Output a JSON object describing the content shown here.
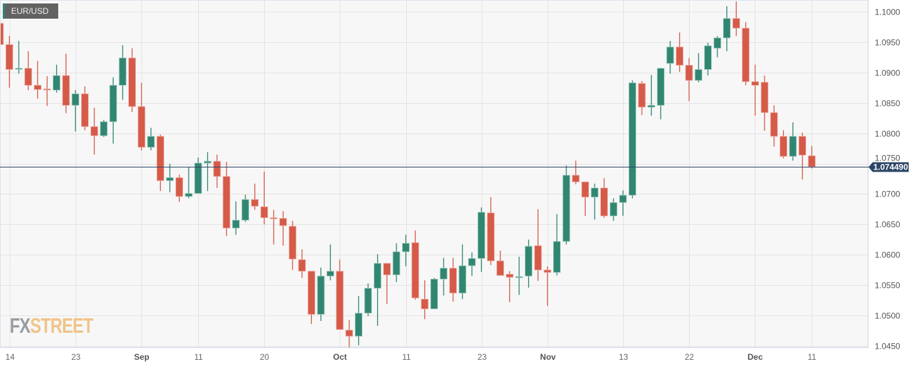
{
  "symbol": "EUR/USD",
  "logo": {
    "part1": "FX",
    "part2": "STREET"
  },
  "colors": {
    "up": "#318672",
    "down": "#d55a48",
    "background": "#f7f7f7",
    "grid": "#e4e4e4",
    "price_line": "#2c4566"
  },
  "chart_data": {
    "type": "candlestick",
    "title": "EUR/USD",
    "ylim": [
      1.045,
      1.1
    ],
    "y_ticks": [
      "1.1000",
      "1.0950",
      "1.0900",
      "1.0850",
      "1.0800",
      "1.0750",
      "1.0700",
      "1.0650",
      "1.0600",
      "1.0550",
      "1.0500",
      "1.0450"
    ],
    "x_ticks": [
      {
        "label": "14",
        "date": "Aug 14",
        "month": false
      },
      {
        "label": "23",
        "date": "Aug 23",
        "month": false
      },
      {
        "label": "Sep",
        "date": "Sep 1",
        "month": true
      },
      {
        "label": "11",
        "date": "Sep 11",
        "month": false
      },
      {
        "label": "20",
        "date": "Sep 20",
        "month": false
      },
      {
        "label": "Oct",
        "date": "Oct 2",
        "month": true
      },
      {
        "label": "11",
        "date": "Oct 11",
        "month": false
      },
      {
        "label": "23",
        "date": "Oct 23",
        "month": false
      },
      {
        "label": "Nov",
        "date": "Nov 1",
        "month": true
      },
      {
        "label": "13",
        "date": "Nov 13",
        "month": false
      },
      {
        "label": "22",
        "date": "Nov 22",
        "month": false
      },
      {
        "label": "Dec",
        "date": "Dec 1",
        "month": true
      },
      {
        "label": "11",
        "date": "Dec 11",
        "month": false
      }
    ],
    "grid": true,
    "last_price": "1.074490",
    "columns": [
      "date",
      "open",
      "high",
      "low",
      "close"
    ],
    "candles": [
      [
        "Aug 11",
        1.0981,
        1.1,
        1.094,
        1.0946
      ],
      [
        "Aug 14",
        1.0946,
        1.096,
        1.0875,
        1.0905
      ],
      [
        "Aug 15",
        1.0906,
        1.0952,
        1.0898,
        1.0907
      ],
      [
        "Aug 16",
        1.0907,
        1.0935,
        1.0871,
        1.0879
      ],
      [
        "Aug 17",
        1.0879,
        1.0919,
        1.0857,
        1.0872
      ],
      [
        "Aug 18",
        1.0873,
        1.0894,
        1.0845,
        1.0872
      ],
      [
        "Aug 21",
        1.0871,
        1.0913,
        1.0867,
        1.0895
      ],
      [
        "Aug 22",
        1.0895,
        1.0931,
        1.0833,
        1.0846
      ],
      [
        "Aug 23",
        1.0846,
        1.0871,
        1.0803,
        1.0865
      ],
      [
        "Aug 24",
        1.0865,
        1.0877,
        1.0805,
        1.0811
      ],
      [
        "Aug 25",
        1.0811,
        1.0842,
        1.0765,
        1.0796
      ],
      [
        "Aug 28",
        1.0796,
        1.0822,
        1.0794,
        1.0819
      ],
      [
        "Aug 29",
        1.0819,
        1.0892,
        1.0783,
        1.0879
      ],
      [
        "Aug 30",
        1.0879,
        1.0945,
        1.0855,
        1.0924
      ],
      [
        "Aug 31",
        1.0924,
        1.094,
        1.0835,
        1.0844
      ],
      [
        "Sep 1",
        1.0844,
        1.0883,
        1.0772,
        1.0777
      ],
      [
        "Sep 4",
        1.0777,
        1.0809,
        1.0772,
        1.0795
      ],
      [
        "Sep 5",
        1.0795,
        1.0798,
        1.0705,
        1.0722
      ],
      [
        "Sep 6",
        1.0722,
        1.075,
        1.0703,
        1.0727
      ],
      [
        "Sep 7",
        1.0727,
        1.0732,
        1.0687,
        1.0696
      ],
      [
        "Sep 8",
        1.0696,
        1.0744,
        1.0693,
        1.0701
      ],
      [
        "Sep 11",
        1.0701,
        1.076,
        1.0701,
        1.0751
      ],
      [
        "Sep 12",
        1.0751,
        1.0769,
        1.0705,
        1.0754
      ],
      [
        "Sep 13",
        1.0754,
        1.0765,
        1.071,
        1.0729
      ],
      [
        "Sep 14",
        1.0729,
        1.0753,
        1.0631,
        1.0644
      ],
      [
        "Sep 15",
        1.0644,
        1.0688,
        1.0633,
        1.0657
      ],
      [
        "Sep 18",
        1.0657,
        1.0699,
        1.0654,
        1.0691
      ],
      [
        "Sep 19",
        1.0691,
        1.0717,
        1.0674,
        1.068
      ],
      [
        "Sep 20",
        1.0679,
        1.0737,
        1.065,
        1.0661
      ],
      [
        "Sep 21",
        1.0661,
        1.0674,
        1.0617,
        1.066
      ],
      [
        "Sep 22",
        1.066,
        1.0672,
        1.0615,
        1.0648
      ],
      [
        "Sep 25",
        1.0647,
        1.0656,
        1.0575,
        1.0593
      ],
      [
        "Sep 26",
        1.0592,
        1.0609,
        1.0562,
        1.0573
      ],
      [
        "Sep 27",
        1.0573,
        1.0573,
        1.0486,
        1.0502
      ],
      [
        "Sep 28",
        1.0502,
        1.0579,
        1.0491,
        1.0565
      ],
      [
        "Sep 29",
        1.0565,
        1.0617,
        1.0558,
        1.0573
      ],
      [
        "Oct 2",
        1.0573,
        1.0592,
        1.0477,
        1.0477
      ],
      [
        "Oct 3",
        1.0476,
        1.0493,
        1.0448,
        1.0466
      ],
      [
        "Oct 4",
        1.0466,
        1.0532,
        1.0451,
        1.0504
      ],
      [
        "Oct 5",
        1.0504,
        1.0553,
        1.0499,
        1.0545
      ],
      [
        "Oct 6",
        1.0545,
        1.0601,
        1.0483,
        1.0586
      ],
      [
        "Oct 9",
        1.0586,
        1.0586,
        1.0519,
        1.0567
      ],
      [
        "Oct 10",
        1.0567,
        1.0619,
        1.0555,
        1.0605
      ],
      [
        "Oct 11",
        1.0605,
        1.0633,
        1.0581,
        1.0619
      ],
      [
        "Oct 12",
        1.062,
        1.064,
        1.0526,
        1.0529
      ],
      [
        "Oct 13",
        1.0527,
        1.0558,
        1.0494,
        1.0511
      ],
      [
        "Oct 16",
        1.0511,
        1.0562,
        1.0511,
        1.056
      ],
      [
        "Oct 17",
        1.056,
        1.0595,
        1.0533,
        1.0578
      ],
      [
        "Oct 18",
        1.0578,
        1.0595,
        1.0523,
        1.0537
      ],
      [
        "Oct 19",
        1.0537,
        1.0617,
        1.0527,
        1.0582
      ],
      [
        "Oct 20",
        1.0582,
        1.0604,
        1.0565,
        1.0594
      ],
      [
        "Oct 23",
        1.0594,
        1.0678,
        1.0572,
        1.067
      ],
      [
        "Oct 24",
        1.0669,
        1.0695,
        1.0583,
        1.059
      ],
      [
        "Oct 25",
        1.059,
        1.0607,
        1.0566,
        1.0566
      ],
      [
        "Oct 26",
        1.0568,
        1.0573,
        1.0522,
        1.0563
      ],
      [
        "Oct 27",
        1.0563,
        1.0597,
        1.0534,
        1.0564
      ],
      [
        "Oct 30",
        1.0565,
        1.0625,
        1.0546,
        1.0614
      ],
      [
        "Oct 31",
        1.0615,
        1.0675,
        1.0557,
        1.0575
      ],
      [
        "Nov 1",
        1.0575,
        1.0581,
        1.0516,
        1.0571
      ],
      [
        "Nov 2",
        1.0571,
        1.0667,
        1.0566,
        1.0622
      ],
      [
        "Nov 3",
        1.0622,
        1.0747,
        1.0617,
        1.0731
      ],
      [
        "Nov 6",
        1.0731,
        1.0755,
        1.0716,
        1.072
      ],
      [
        "Nov 7",
        1.072,
        1.072,
        1.0664,
        1.0695
      ],
      [
        "Nov 8",
        1.0695,
        1.0717,
        1.0658,
        1.071
      ],
      [
        "Nov 9",
        1.071,
        1.0726,
        1.0661,
        1.0664
      ],
      [
        "Nov 10",
        1.0664,
        1.0693,
        1.0656,
        1.0686
      ],
      [
        "Nov 13",
        1.0686,
        1.0706,
        1.0664,
        1.0698
      ],
      [
        "Nov 14",
        1.0698,
        1.0887,
        1.0693,
        1.0883
      ],
      [
        "Nov 15",
        1.0882,
        1.0886,
        1.083,
        1.0843
      ],
      [
        "Nov 16",
        1.0843,
        1.0896,
        1.0829,
        1.0846
      ],
      [
        "Nov 17",
        1.0846,
        1.0907,
        1.0823,
        1.0907
      ],
      [
        "Nov 20",
        1.0915,
        1.0952,
        1.0898,
        1.0942
      ],
      [
        "Nov 21",
        1.0942,
        1.0966,
        1.0901,
        1.0912
      ],
      [
        "Nov 22",
        1.0912,
        1.0924,
        1.0853,
        1.0887
      ],
      [
        "Nov 23",
        1.0887,
        1.0932,
        1.0884,
        1.0905
      ],
      [
        "Nov 24",
        1.0905,
        1.0949,
        1.0895,
        1.0944
      ],
      [
        "Nov 27",
        1.094,
        1.096,
        1.0925,
        1.0957
      ],
      [
        "Nov 28",
        1.0957,
        1.1009,
        1.0935,
        1.0989
      ],
      [
        "Nov 29",
        1.0989,
        1.1017,
        1.096,
        1.0973
      ],
      [
        "Nov 30",
        1.0973,
        1.0983,
        1.0879,
        1.0885
      ],
      [
        "Dec 1",
        1.0885,
        1.0913,
        1.0829,
        1.0879
      ],
      [
        "Dec 4",
        1.0884,
        1.0895,
        1.0804,
        1.0834
      ],
      [
        "Dec 5",
        1.0834,
        1.0846,
        1.0778,
        1.0795
      ],
      [
        "Dec 6",
        1.0795,
        1.0805,
        1.0759,
        1.0762
      ],
      [
        "Dec 7",
        1.0762,
        1.0818,
        1.0755,
        1.0795
      ],
      [
        "Dec 8",
        1.0795,
        1.0801,
        1.0724,
        1.0764
      ],
      [
        "Dec 11",
        1.0763,
        1.0779,
        1.0742,
        1.07449
      ]
    ]
  }
}
